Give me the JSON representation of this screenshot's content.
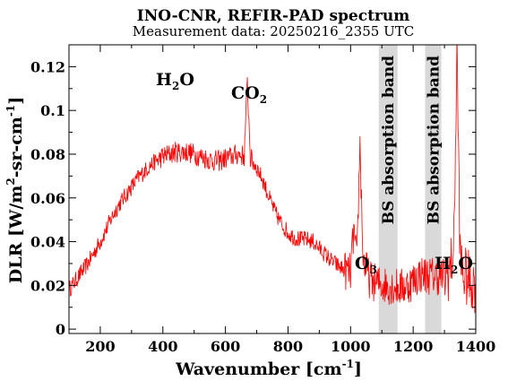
{
  "title": "INO-CNR, REFIR-PAD spectrum",
  "subtitle": "Measurement data: 20250216_2355 UTC",
  "axes": {
    "x_label_main": "Wavenumber [cm",
    "x_label_sup": "-1",
    "x_label_end": "]",
    "y_label_parts": [
      {
        "t": "DLR [W/m",
        "sup": false
      },
      {
        "t": "2",
        "sup": true
      },
      {
        "t": "-sr-cm",
        "sup": false
      },
      {
        "t": "-1",
        "sup": true
      },
      {
        "t": "]",
        "sup": false
      }
    ]
  },
  "annotations": {
    "h2o_left": {
      "main": "H",
      "sub": "2",
      "end": "O"
    },
    "co2": {
      "main": "CO",
      "sub": "2"
    },
    "o3": {
      "main": "O",
      "sub": "3"
    },
    "h2o_right": {
      "main": "H",
      "sub": "2",
      "end": "O"
    }
  },
  "chart_data": {
    "type": "line",
    "title": "INO-CNR, REFIR-PAD spectrum",
    "subtitle": "Measurement data: 20250216_2355 UTC",
    "xlabel": "Wavenumber [cm-1]",
    "ylabel": "DLR [W/m2-sr-cm-1]",
    "xlim": [
      100,
      1400
    ],
    "ylim": [
      -0.002,
      0.13
    ],
    "xticks": [
      200,
      400,
      600,
      800,
      1000,
      1200,
      1400
    ],
    "yticks": [
      0,
      0.02,
      0.04,
      0.06,
      0.08,
      0.1,
      0.12
    ],
    "ytick_labels": [
      "0",
      "0.02",
      "0.04",
      "0.06",
      "0.08",
      "0.1",
      "0.12"
    ],
    "line_color": "#ff0000",
    "band_color": "#d9d9d9",
    "bands": [
      {
        "x0": 1090,
        "x1": 1150,
        "label": "BS absorption band"
      },
      {
        "x0": 1238,
        "x1": 1290,
        "label": "BS absorption band"
      }
    ],
    "series": [
      {
        "x": [
          100,
          120,
          140,
          160,
          180,
          200,
          220,
          240,
          260,
          280,
          300,
          320,
          340,
          360,
          380,
          400,
          420,
          440,
          460,
          480,
          500,
          520,
          540,
          560,
          580,
          600,
          620,
          640,
          660,
          670,
          680,
          700,
          720,
          740,
          760,
          780,
          800,
          820,
          840,
          860,
          880,
          900,
          920,
          940,
          960,
          980,
          1000,
          1010,
          1020,
          1030,
          1040,
          1060,
          1080,
          1160,
          1180,
          1200,
          1220,
          1300,
          1320,
          1330,
          1340,
          1350,
          1360,
          1380,
          1400
        ],
        "y": [
          0.018,
          0.022,
          0.026,
          0.03,
          0.035,
          0.04,
          0.046,
          0.052,
          0.057,
          0.061,
          0.065,
          0.069,
          0.072,
          0.075,
          0.077,
          0.079,
          0.08,
          0.081,
          0.081,
          0.081,
          0.08,
          0.079,
          0.078,
          0.077,
          0.077,
          0.078,
          0.079,
          0.08,
          0.079,
          0.113,
          0.078,
          0.074,
          0.068,
          0.06,
          0.053,
          0.048,
          0.044,
          0.042,
          0.041,
          0.041,
          0.04,
          0.037,
          0.034,
          0.031,
          0.029,
          0.027,
          0.026,
          0.045,
          0.03,
          0.085,
          0.032,
          0.023,
          0.021,
          0.019,
          0.02,
          0.022,
          0.025,
          0.024,
          0.028,
          0.038,
          0.128,
          0.032,
          0.025,
          0.022,
          0.021
        ]
      }
    ]
  }
}
